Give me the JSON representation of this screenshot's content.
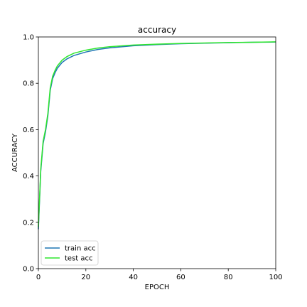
{
  "chart_data": {
    "type": "line",
    "title": "accuracy",
    "xlabel": "EPOCH",
    "ylabel": "ACCURACY",
    "xlim": [
      0,
      100
    ],
    "ylim": [
      0.0,
      1.0
    ],
    "xticks": [
      0,
      20,
      40,
      60,
      80,
      100
    ],
    "yticks": [
      0.0,
      0.2,
      0.4,
      0.6,
      0.8,
      1.0
    ],
    "xtick_labels": [
      "0",
      "20",
      "40",
      "60",
      "80",
      "100"
    ],
    "ytick_labels": [
      "0.0",
      "0.2",
      "0.4",
      "0.6",
      "0.8",
      "1.0"
    ],
    "grid": false,
    "legend_position": "lower-left",
    "series": [
      {
        "name": "train acc",
        "color": "#1f77b4",
        "x": [
          0,
          1,
          2,
          3,
          4,
          5,
          6,
          7,
          8,
          10,
          12,
          15,
          20,
          25,
          30,
          40,
          50,
          60,
          70,
          80,
          90,
          100
        ],
        "y": [
          0.17,
          0.42,
          0.54,
          0.59,
          0.66,
          0.77,
          0.82,
          0.845,
          0.865,
          0.89,
          0.905,
          0.92,
          0.935,
          0.946,
          0.953,
          0.962,
          0.967,
          0.971,
          0.973,
          0.975,
          0.977,
          0.978
        ]
      },
      {
        "name": "test acc",
        "color": "#2ee62e",
        "x": [
          0,
          1,
          2,
          3,
          4,
          5,
          6,
          7,
          8,
          10,
          12,
          15,
          20,
          25,
          30,
          40,
          50,
          60,
          70,
          80,
          90,
          100
        ],
        "y": [
          0.18,
          0.43,
          0.55,
          0.6,
          0.67,
          0.78,
          0.83,
          0.855,
          0.875,
          0.9,
          0.915,
          0.93,
          0.943,
          0.952,
          0.958,
          0.965,
          0.969,
          0.972,
          0.974,
          0.976,
          0.977,
          0.979
        ]
      }
    ]
  }
}
